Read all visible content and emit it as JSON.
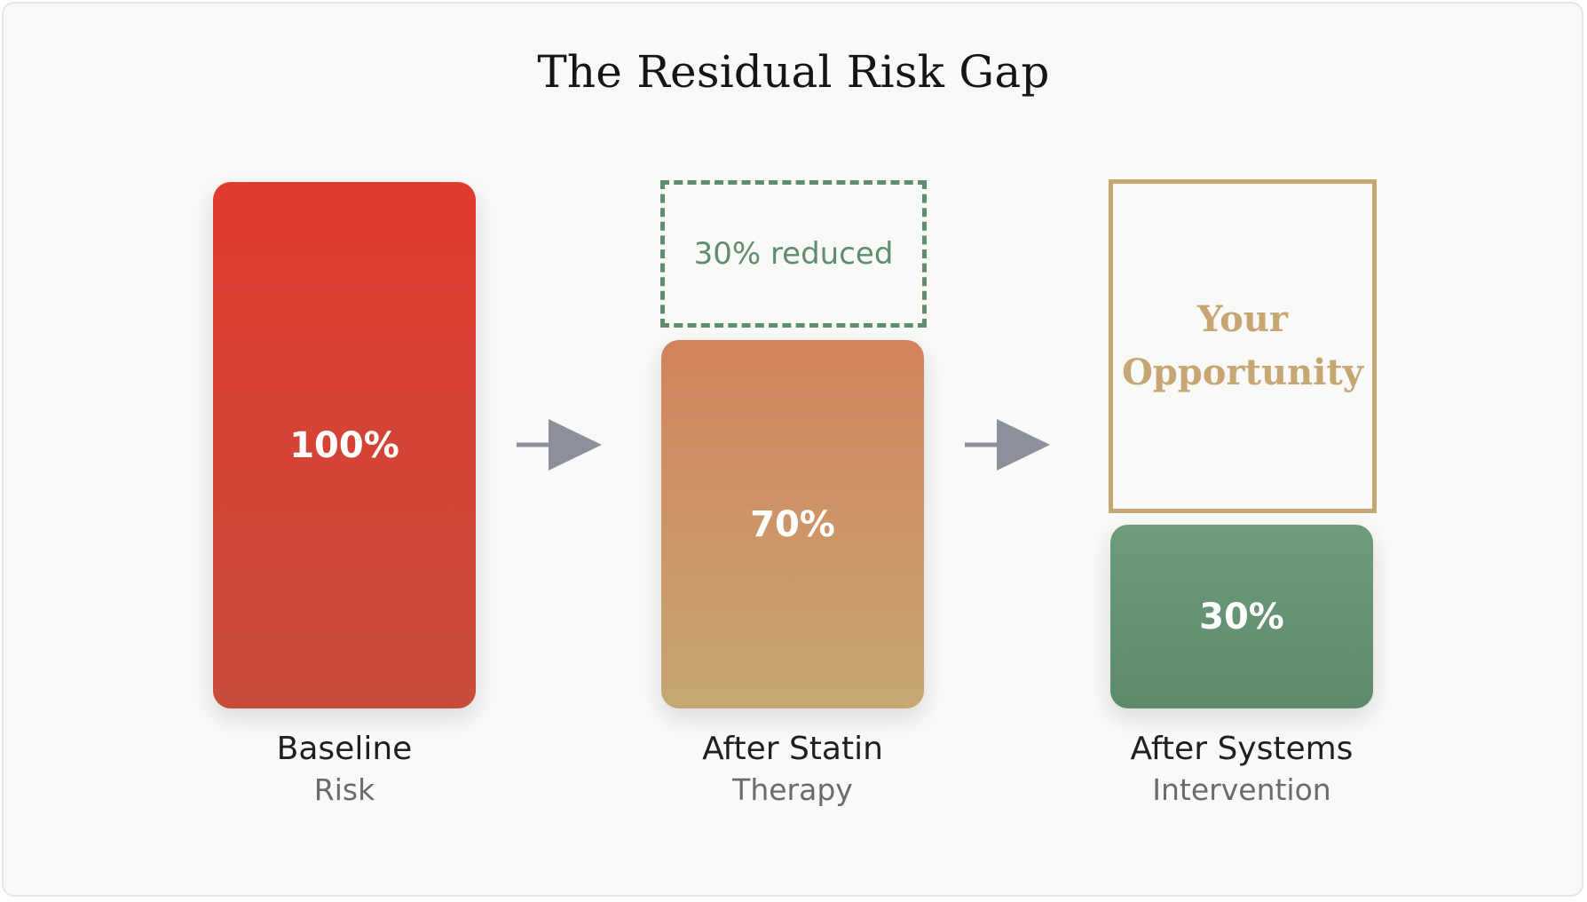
{
  "title": "The Residual Risk Gap",
  "stages": [
    {
      "value": "100%",
      "label": "Baseline",
      "sublabel": "Risk",
      "color": "#e03b2f"
    },
    {
      "value": "70%",
      "label": "After Statin",
      "sublabel": "Therapy",
      "color": "#d3835c"
    },
    {
      "value": "30%",
      "label": "After Systems",
      "sublabel": "Intervention",
      "color": "#6e9c7b"
    }
  ],
  "reduced_note": "30% reduced",
  "opportunity": {
    "line1": "Your",
    "line2": "Opportunity",
    "color": "#c6a673"
  },
  "icons": [
    "arrow-right-icon",
    "arrow-right-icon"
  ]
}
